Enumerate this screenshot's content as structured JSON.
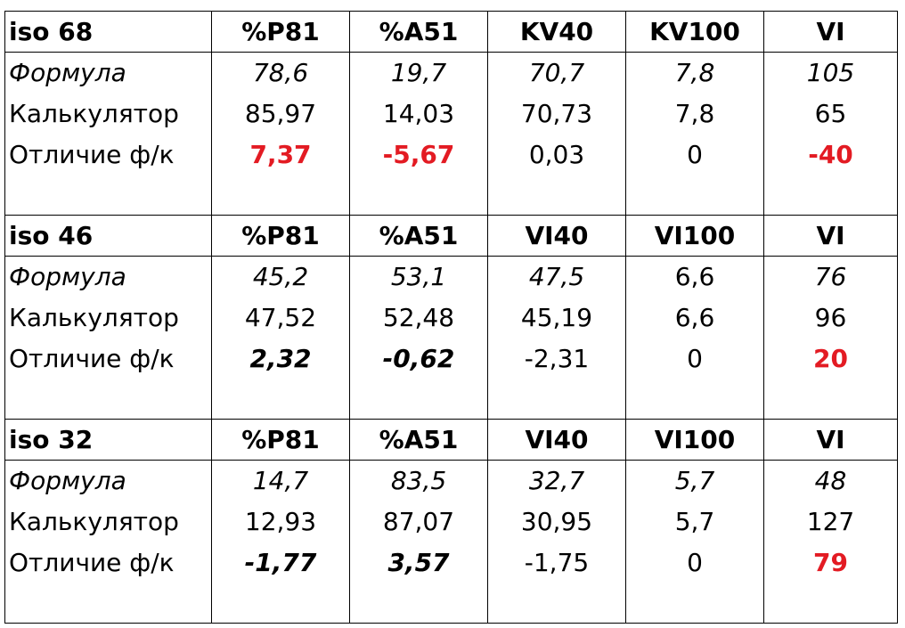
{
  "blocks": [
    {
      "header": [
        "iso 68",
        "%P81",
        "%A51",
        "KV40",
        "KV100",
        "VI"
      ],
      "formula": [
        "Формула",
        "78,6",
        "19,7",
        "70,7",
        "7,8",
        "105"
      ],
      "calc": [
        "Калькулятор",
        "85,97",
        "14,03",
        "70,73",
        "7,8",
        "65"
      ],
      "diff": [
        "Отличие ф/к",
        "7,37",
        "-5,67",
        "0,03",
        "0",
        "-40"
      ]
    },
    {
      "header": [
        "iso 46",
        "%P81",
        "%A51",
        "VI40",
        "VI100",
        "VI"
      ],
      "formula": [
        "Формула",
        "45,2",
        "53,1",
        "47,5",
        "6,6",
        "76"
      ],
      "calc": [
        "Калькулятор",
        "47,52",
        "52,48",
        "45,19",
        "6,6",
        "96"
      ],
      "diff": [
        "Отличие ф/к",
        "2,32",
        "-0,62",
        "-2,31",
        "0",
        "20"
      ]
    },
    {
      "header": [
        "iso 32",
        "%P81",
        "%A51",
        "VI40",
        "VI100",
        "VI"
      ],
      "formula": [
        "Формула",
        "14,7",
        "83,5",
        "32,7",
        "5,7",
        "48"
      ],
      "calc": [
        "Калькулятор",
        "12,93",
        "87,07",
        "30,95",
        "5,7",
        "127"
      ],
      "diff": [
        "Отличие ф/к",
        "-1,77",
        "3,57",
        "-1,75",
        "0",
        "79"
      ]
    }
  ],
  "colors": {
    "highlight_red": "#e31b23",
    "grid_line": "#000000"
  }
}
